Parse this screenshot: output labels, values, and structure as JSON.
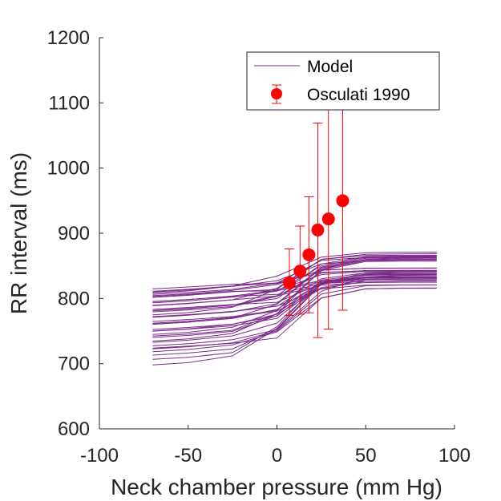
{
  "chart_data": {
    "type": "line",
    "title": "",
    "xlabel": "Neck chamber pressure (mm Hg)",
    "ylabel": "RR interval (ms)",
    "xlim": [
      -100,
      100
    ],
    "ylim": [
      600,
      1200
    ],
    "xticks": [
      -100,
      -50,
      0,
      50,
      100
    ],
    "yticks": [
      600,
      700,
      800,
      900,
      1000,
      1100,
      1200
    ],
    "grid": false,
    "legend": {
      "placement": "top-right",
      "entries": [
        "Model",
        "Osculati 1990"
      ]
    },
    "colors": {
      "model": "#7b2a8a",
      "data": "#ff0000",
      "axis": "#262626"
    },
    "model": {
      "name": "Model",
      "x": [
        -70,
        -50,
        -25,
        0,
        25,
        50,
        70,
        90
      ],
      "curve_count": 40,
      "low_range": [
        698,
        815
      ],
      "high_range": [
        811,
        878
      ]
    },
    "observations": {
      "name": "Osculati 1990",
      "x": [
        7,
        13,
        18,
        23,
        29,
        37
      ],
      "y": [
        824,
        842,
        867,
        905,
        922,
        950
      ],
      "yerr_low": [
        774,
        776,
        778,
        740,
        753,
        782
      ],
      "yerr_high": [
        876,
        911,
        956,
        1069,
        1091,
        1117
      ]
    }
  }
}
